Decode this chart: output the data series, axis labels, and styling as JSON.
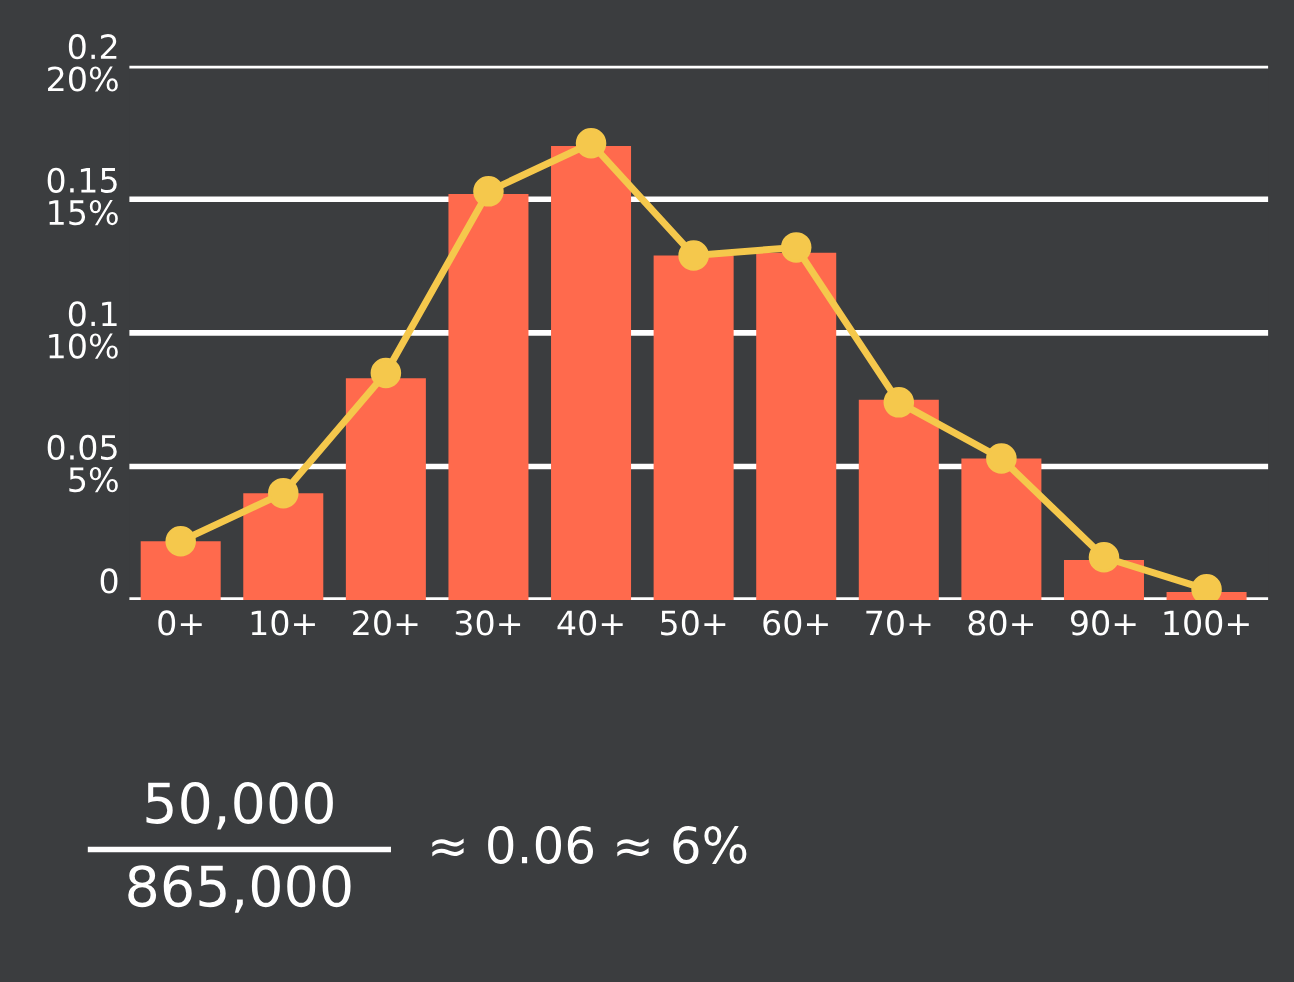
{
  "chart_data": {
    "type": "bar",
    "categories": [
      "0+",
      "10+",
      "20+",
      "30+",
      "40+",
      "50+",
      "60+",
      "70+",
      "80+",
      "90+",
      "100+"
    ],
    "series": [
      {
        "color": "#ff6a4d",
        "values": [
          0.022,
          0.04,
          0.083,
          0.152,
          0.17,
          0.129,
          0.13,
          0.075,
          0.053,
          0.015,
          0.003
        ]
      },
      {
        "type": "line",
        "color": "#f5c84c",
        "marker": "circle",
        "values": [
          0.022,
          0.04,
          0.085,
          0.153,
          0.171,
          0.129,
          0.132,
          0.074,
          0.053,
          0.016,
          0.004
        ]
      }
    ],
    "ylim": [
      0,
      0.2
    ],
    "yticks": [
      0,
      0.05,
      0.1,
      0.15,
      0.2
    ],
    "y2lim": [
      0,
      20
    ],
    "y2ticks": [
      {
        "value": 5,
        "label": "5%"
      },
      {
        "value": 10,
        "label": "10%"
      },
      {
        "value": 15,
        "label": "15%"
      },
      {
        "value": 20,
        "label": "20%"
      }
    ],
    "grid": "y",
    "annotations": [
      "50,000",
      "865,000",
      "≈ 0.06 ≈ 6%"
    ]
  }
}
